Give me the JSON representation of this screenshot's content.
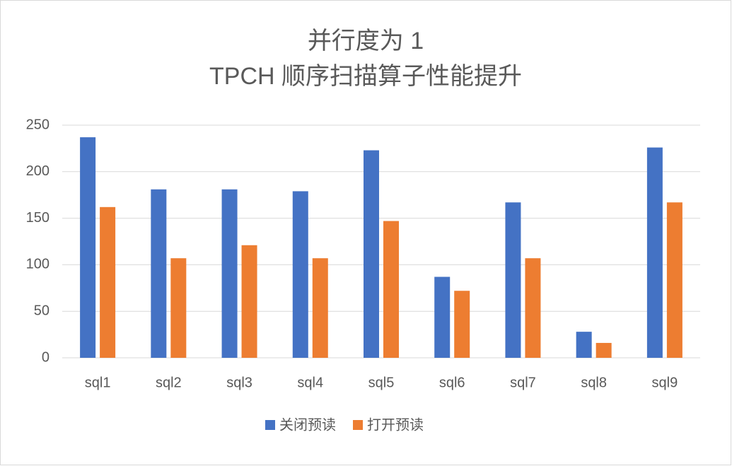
{
  "chart_data": {
    "type": "bar",
    "title": [
      "并行度为 1",
      "TPCH 顺序扫描算子性能提升"
    ],
    "categories": [
      "sql1",
      "sql2",
      "sql3",
      "sql4",
      "sql5",
      "sql6",
      "sql7",
      "sql8",
      "sql9"
    ],
    "series": [
      {
        "name": "关闭预读",
        "color": "#4472c4",
        "values": [
          237,
          181,
          181,
          179,
          223,
          87,
          167,
          28,
          226
        ]
      },
      {
        "name": "打开预读",
        "color": "#ed7d31",
        "values": [
          162,
          107,
          121,
          107,
          147,
          72,
          107,
          16,
          167
        ]
      }
    ],
    "ylim": [
      0,
      250
    ],
    "yticks": [
      0,
      50,
      100,
      150,
      200,
      250
    ],
    "grid": true,
    "legend": "bottom"
  }
}
